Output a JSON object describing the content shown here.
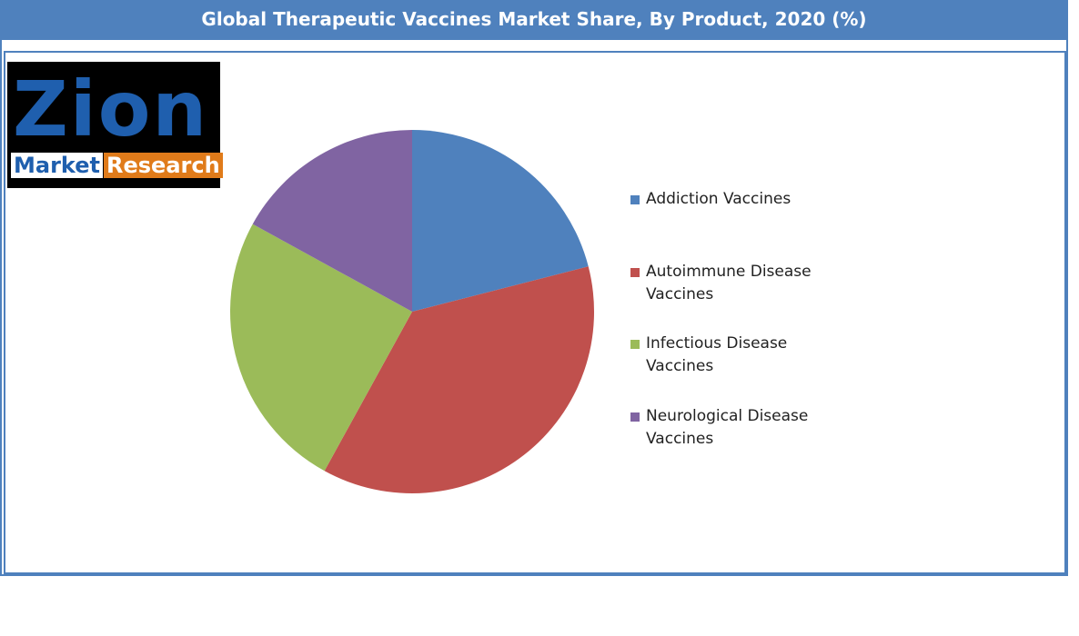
{
  "chart_data": {
    "type": "pie",
    "title": "Global Therapeutic Vaccines Market Share, By Product, 2020 (%)",
    "categories": [
      "Addiction Vaccines",
      "Autoimmune Disease Vaccines",
      "Infectious Disease Vaccines",
      "Neurological Disease Vaccines"
    ],
    "values": [
      21,
      37,
      25,
      17
    ],
    "colors": [
      "#4f81bd",
      "#c0504d",
      "#9bbb59",
      "#8064a2"
    ],
    "legend": "right"
  },
  "logo": {
    "name": "Zion",
    "left": "Market",
    "right": "Research"
  }
}
